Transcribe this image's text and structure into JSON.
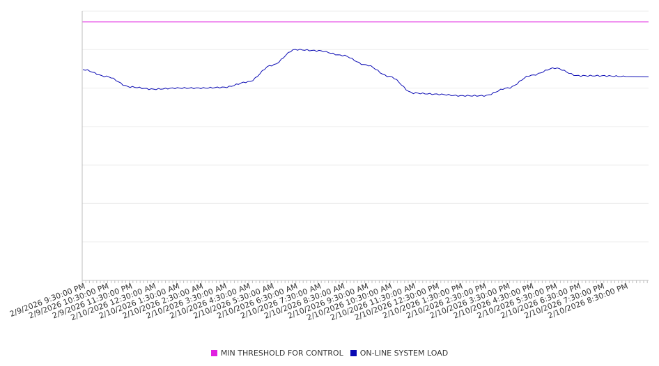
{
  "chart_data": {
    "type": "line",
    "title": "",
    "xlabel": "",
    "ylabel": "",
    "x": [
      "2/9/2026 9:30:00 PM",
      "2/9/2026 10:30:00 PM",
      "2/9/2026 11:30:00 PM",
      "2/10/2026 12:30:00 AM",
      "2/10/2026 1:30:00 AM",
      "2/10/2026 2:30:00 AM",
      "2/10/2026 3:30:00 AM",
      "2/10/2026 4:30:00 AM",
      "2/10/2026 5:30:00 AM",
      "2/10/2026 6:30:00 AM",
      "2/10/2026 7:30:00 AM",
      "2/10/2026 8:30:00 AM",
      "2/10/2026 9:30:00 AM",
      "2/10/2026 10:30:00 AM",
      "2/10/2026 11:30:00 AM",
      "2/10/2026 12:30:00 PM",
      "2/10/2026 1:30:00 PM",
      "2/10/2026 2:30:00 PM",
      "2/10/2026 3:30:00 PM",
      "2/10/2026 4:30:00 PM",
      "2/10/2026 5:30:00 PM",
      "2/10/2026 6:30:00 PM",
      "2/10/2026 7:30:00 PM",
      "2/10/2026 8:30:00 PM"
    ],
    "series": [
      {
        "name": "MIN THRESHOLD FOR CONTROL",
        "color": "#e020e0",
        "values": [
          6.72,
          6.72,
          6.72,
          6.72,
          6.72,
          6.72,
          6.72,
          6.72,
          6.72,
          6.72,
          6.72,
          6.72,
          6.72,
          6.72,
          6.72,
          6.72,
          6.72,
          6.72,
          6.72,
          6.72,
          6.72,
          6.72,
          6.72,
          6.72
        ]
      },
      {
        "name": "ON-LINE SYSTEM LOAD",
        "color": "#0a0ab4",
        "values": [
          5.48,
          5.3,
          5.03,
          4.97,
          5.0,
          5.0,
          5.02,
          5.16,
          5.59,
          6.0,
          5.97,
          5.85,
          5.6,
          5.3,
          4.87,
          4.84,
          4.8,
          4.8,
          5.0,
          5.33,
          5.52,
          5.32,
          5.32,
          5.3
        ]
      }
    ],
    "ylim": [
      0,
      7
    ],
    "grid": true,
    "gridlines": 7,
    "legend_position": "bottom"
  }
}
